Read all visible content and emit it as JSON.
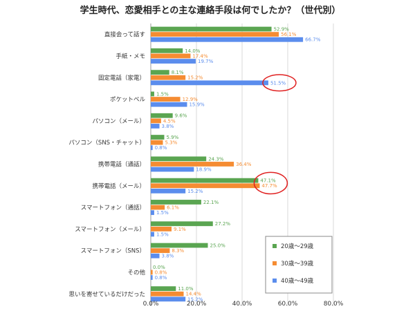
{
  "chart_data": {
    "type": "bar",
    "orientation": "horizontal",
    "title": "学生時代、恋愛相手との主な連絡手段は何でしたか？（世代別）",
    "categories": [
      "直接会って話す",
      "手紙・メモ",
      "固定電話（家電）",
      "ポケットベル",
      "パソコン（メール）",
      "パソコン（SNS・チャット）",
      "携帯電話（通話）",
      "携帯電話（メール）",
      "スマートフォン（通話）",
      "スマートフォン（メール）",
      "スマートフォン（SNS）",
      "その他",
      "思いを寄せているだけだった"
    ],
    "series": [
      {
        "name": "20歳～29歳",
        "color": "#5aa551",
        "labels": [
          "52.9%",
          "14.0%",
          "8.1%",
          "1.5%",
          "9.6%",
          "5.9%",
          "24.3%",
          "47.1%",
          "22.1%",
          "27.2%",
          "25.0%",
          "0.0%",
          "11.0%"
        ],
        "values": [
          52.9,
          14.0,
          8.1,
          1.5,
          9.6,
          5.9,
          24.3,
          47.1,
          22.1,
          27.2,
          25.0,
          0.0,
          11.0
        ]
      },
      {
        "name": "30歳～39歳",
        "color": "#f58c32",
        "labels": [
          "56.1%",
          "17.4%",
          "15.2%",
          "12.9%",
          "4.5%",
          "5.3%",
          "36.4%",
          "47.7%",
          "6.1%",
          "9.1%",
          "8.3%",
          "0.8%",
          "14.4%"
        ],
        "values": [
          56.1,
          17.4,
          15.2,
          12.9,
          4.5,
          5.3,
          36.4,
          47.7,
          6.1,
          9.1,
          8.3,
          0.8,
          14.4
        ]
      },
      {
        "name": "40歳～49歳",
        "color": "#5b8ded",
        "labels": [
          "66.7%",
          "19.7%",
          "51.5%",
          "15.9%",
          "3.8%",
          "0.8%",
          "18.9%",
          "15.2%",
          "1.5%",
          "1.5%",
          "3.8%",
          "0.8%",
          "15.2%"
        ],
        "values": [
          66.7,
          19.7,
          51.5,
          15.9,
          3.8,
          0.8,
          18.9,
          15.2,
          1.5,
          1.5,
          3.8,
          0.8,
          15.2
        ]
      }
    ],
    "xticks": [
      "0.0%",
      "20.0%",
      "40.0%",
      "60.0%",
      "80.0%"
    ],
    "xlim": [
      0,
      80
    ],
    "grid": true,
    "legend_position": "bottom-right",
    "highlighted": [
      {
        "category": "固定電話（家電）",
        "series": "40歳～49歳"
      },
      {
        "category": "携帯電話（メール）",
        "series": "20歳～29歳"
      },
      {
        "category": "携帯電話（メール）",
        "series": "30歳～39歳"
      }
    ],
    "highlight_color": "#e02020"
  }
}
